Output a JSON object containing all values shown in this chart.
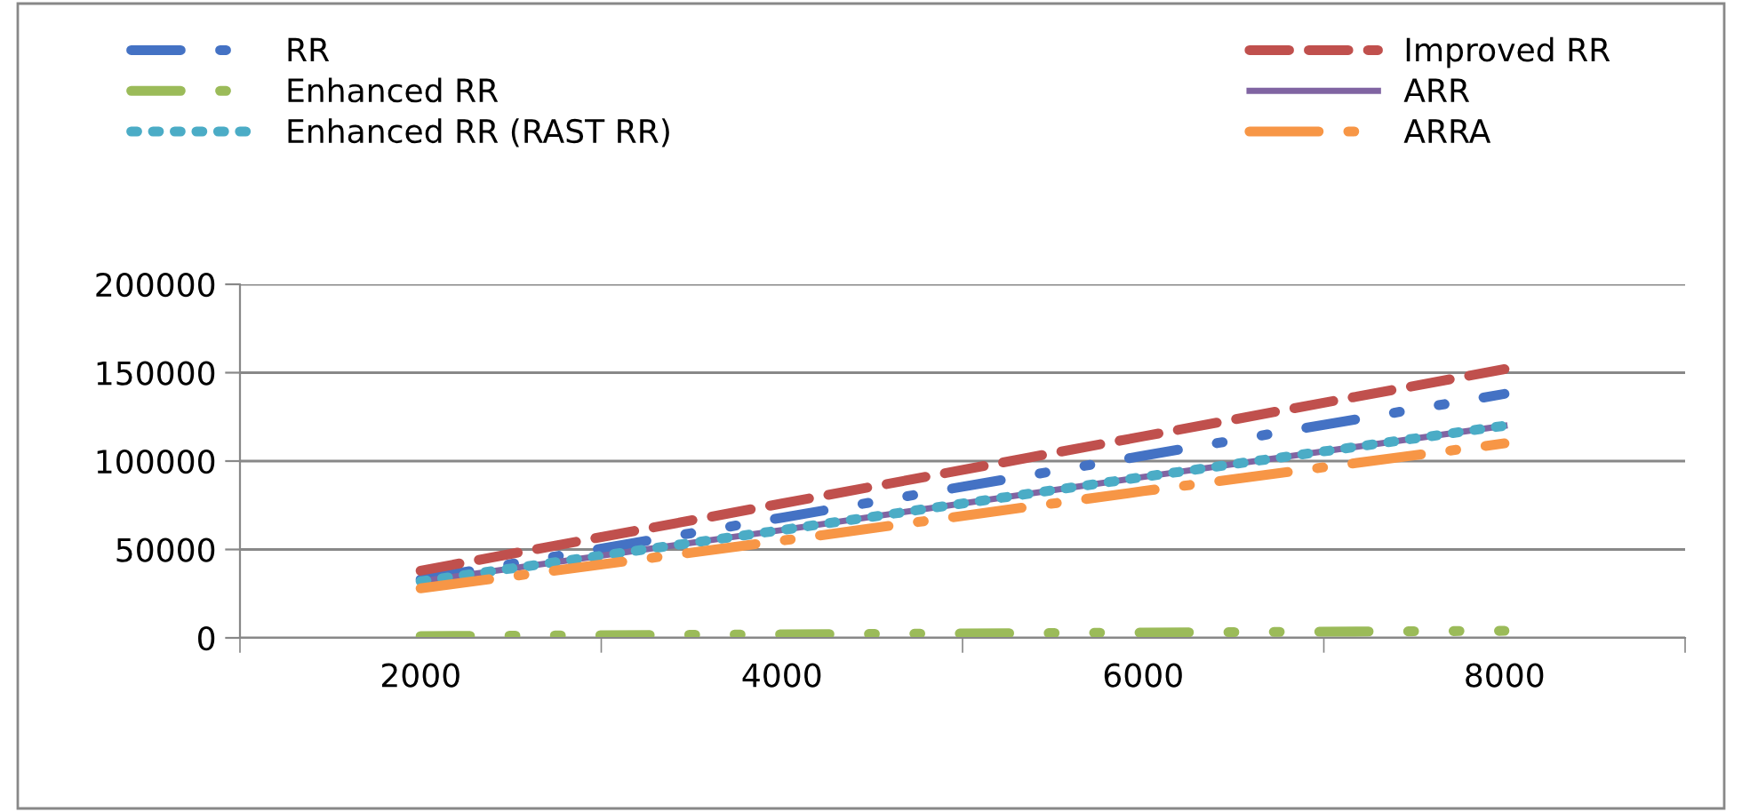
{
  "chart_data": {
    "type": "line",
    "categories": [
      "2000",
      "4000",
      "6000",
      "8000"
    ],
    "series": [
      {
        "name": "RR",
        "color": "#4472c4",
        "line_style": "dashdotdot",
        "values": [
          33000,
          68000,
          103000,
          138000
        ]
      },
      {
        "name": "Improved RR",
        "color": "#c0504d",
        "line_style": "dashed",
        "values": [
          38000,
          76000,
          114000,
          152000
        ]
      },
      {
        "name": "Enhanced RR",
        "color": "#9bbb59",
        "line_style": "dashdotdot",
        "values": [
          1000,
          2000,
          3000,
          4000
        ]
      },
      {
        "name": "ARR",
        "color": "#8064a2",
        "line_style": "solid",
        "values": [
          32000,
          61000,
          91000,
          120000
        ]
      },
      {
        "name": "Enhanced RR (RAST RR)",
        "color": "#4bacc6",
        "line_style": "dotted",
        "values": [
          32000,
          61000,
          91000,
          120000
        ]
      },
      {
        "name": "ARRA",
        "color": "#f79646",
        "line_style": "dashdot",
        "values": [
          28000,
          55000,
          83000,
          110000
        ]
      }
    ],
    "ylim": [
      0,
      200000
    ],
    "yticks": [
      0,
      50000,
      100000,
      150000,
      200000
    ],
    "grid": "y",
    "legend": "top",
    "marker": "none"
  }
}
